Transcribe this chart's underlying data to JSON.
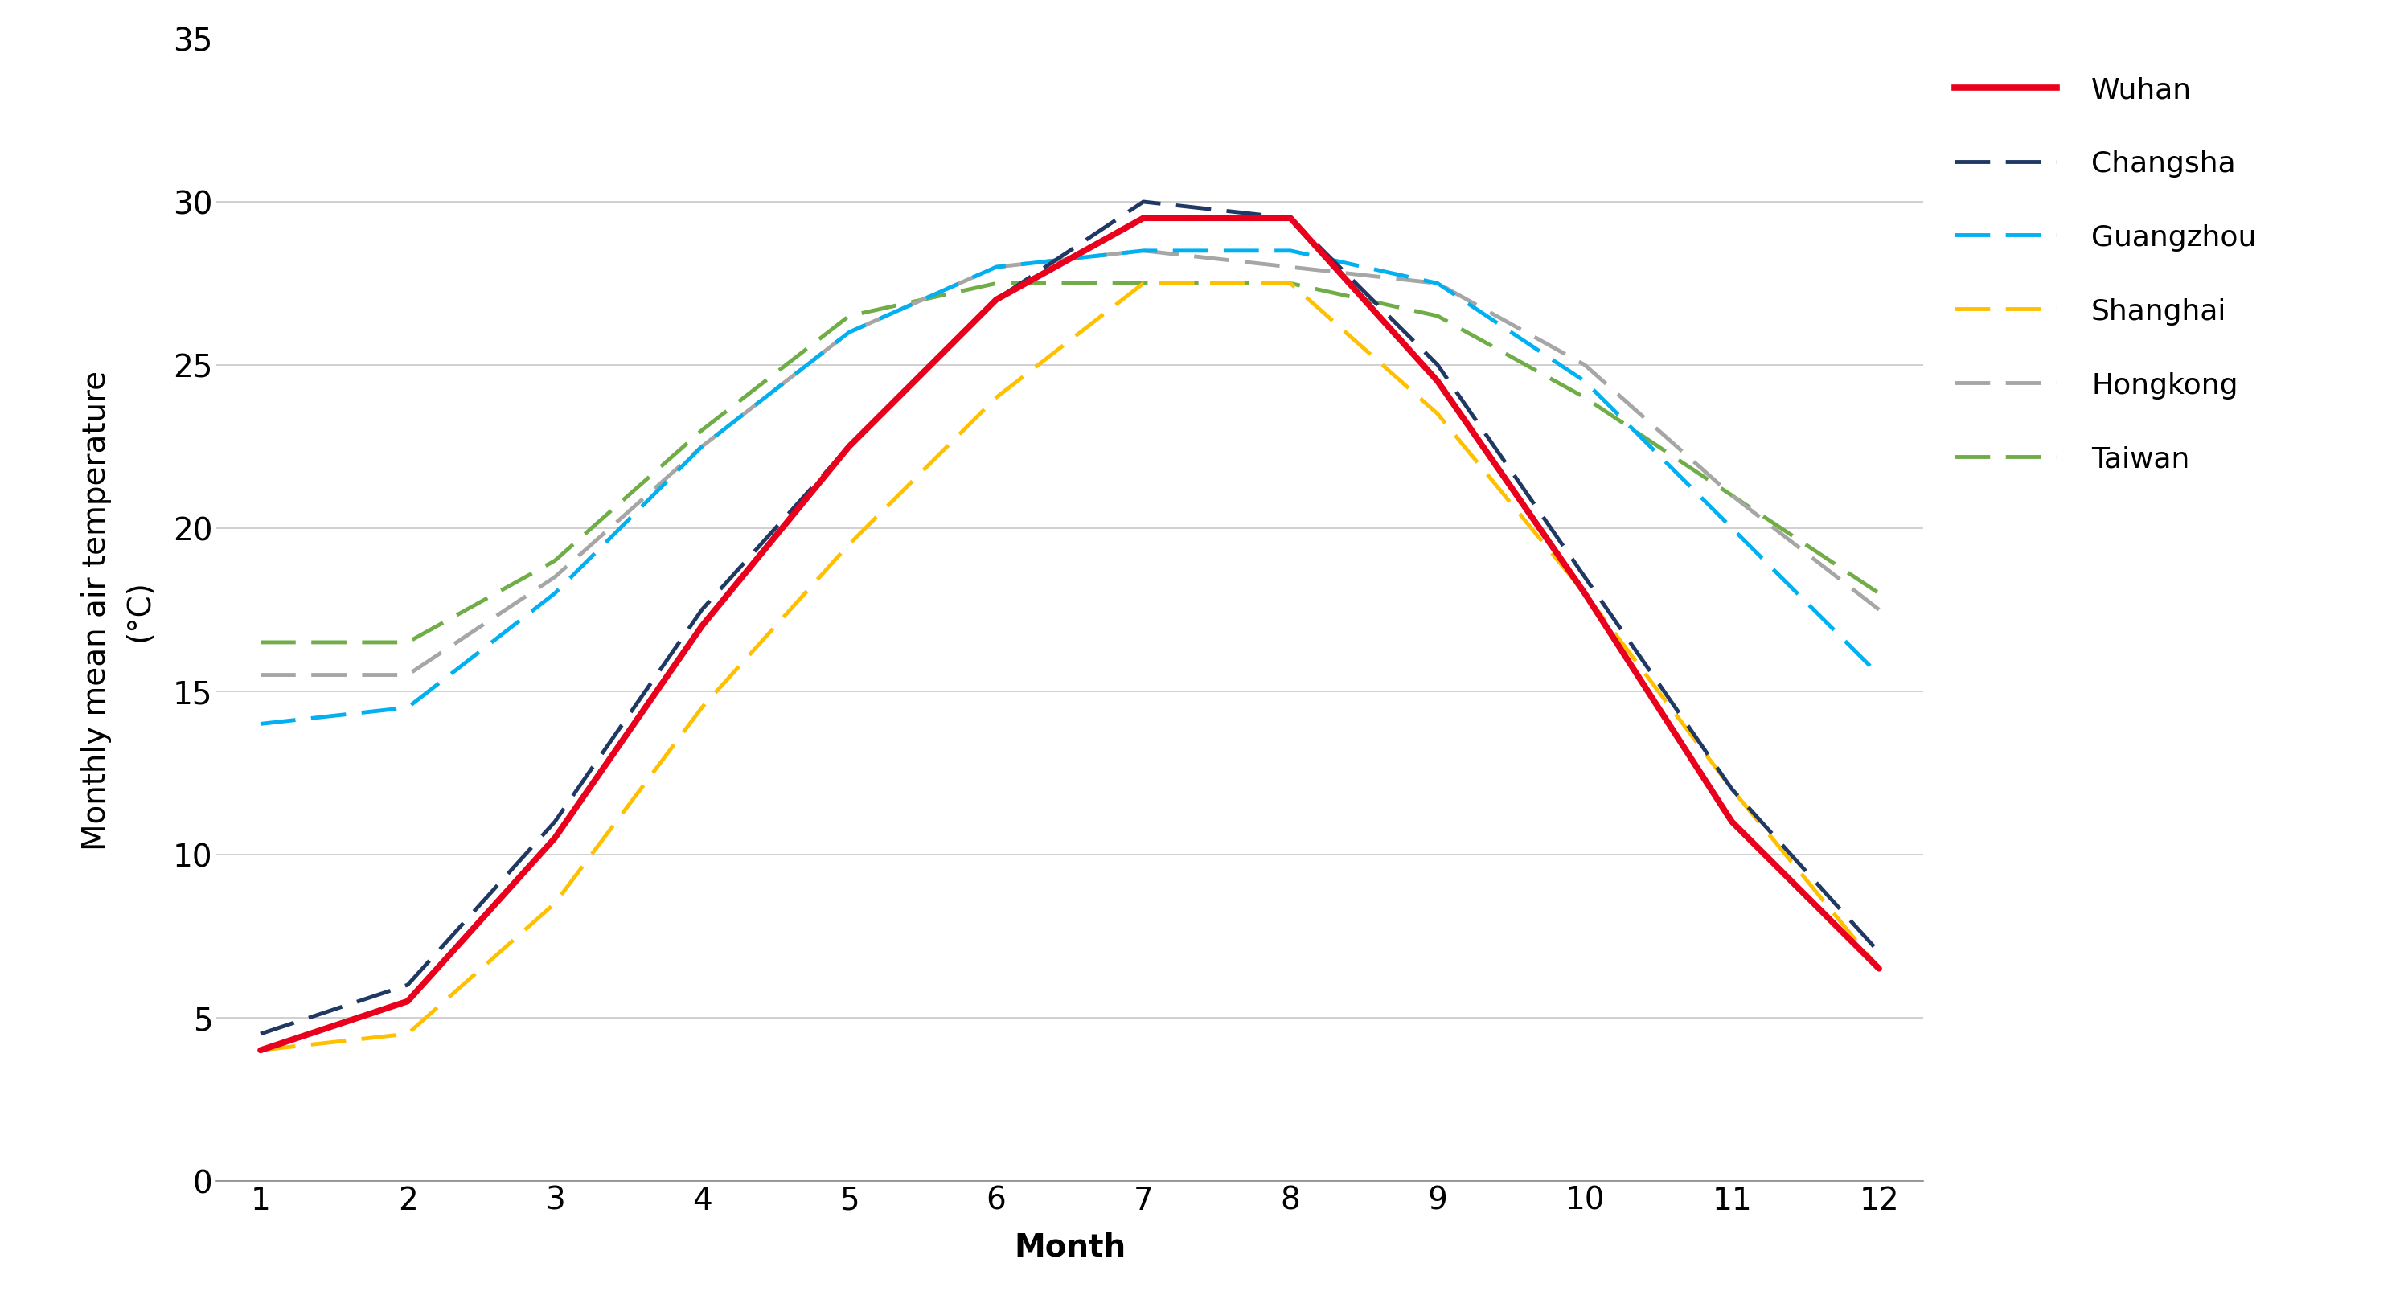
{
  "months": [
    1,
    2,
    3,
    4,
    5,
    6,
    7,
    8,
    9,
    10,
    11,
    12
  ],
  "series": {
    "Wuhan": {
      "values": [
        4.0,
        5.5,
        10.5,
        17.0,
        22.5,
        27.0,
        29.5,
        29.5,
        24.5,
        18.0,
        11.0,
        6.5
      ],
      "color": "#e8001c",
      "linestyle": "solid",
      "linewidth": 5.5,
      "zorder": 10
    },
    "Changsha": {
      "values": [
        4.5,
        6.0,
        11.0,
        17.5,
        22.5,
        27.0,
        30.0,
        29.5,
        25.0,
        18.5,
        12.0,
        7.0
      ],
      "color": "#1f3864",
      "linestyle": "dashed",
      "linewidth": 3.5,
      "zorder": 9
    },
    "Guangzhou": {
      "values": [
        14.0,
        14.5,
        18.0,
        22.5,
        26.0,
        28.0,
        28.5,
        28.5,
        27.5,
        24.5,
        20.0,
        15.5
      ],
      "color": "#00b0f0",
      "linestyle": "dashed",
      "linewidth": 3.5,
      "zorder": 8
    },
    "Shanghai": {
      "values": [
        4.0,
        4.5,
        8.5,
        14.5,
        19.5,
        24.0,
        27.5,
        27.5,
        23.5,
        18.0,
        12.0,
        6.5
      ],
      "color": "#ffc000",
      "linestyle": "dashed",
      "linewidth": 3.5,
      "zorder": 7
    },
    "Hongkong": {
      "values": [
        15.5,
        15.5,
        18.5,
        22.5,
        26.0,
        28.0,
        28.5,
        28.0,
        27.5,
        25.0,
        21.0,
        17.5
      ],
      "color": "#a6a6a6",
      "linestyle": "dashed",
      "linewidth": 3.5,
      "zorder": 6
    },
    "Taiwan": {
      "values": [
        16.5,
        16.5,
        19.0,
        23.0,
        26.5,
        27.5,
        27.5,
        27.5,
        26.5,
        24.0,
        21.0,
        18.0
      ],
      "color": "#70ad47",
      "linestyle": "dashed",
      "linewidth": 3.5,
      "zorder": 5
    }
  },
  "xlabel": "Month",
  "ylabel_line1": "Monthly mean air temperature",
  "ylabel_line2": "(°C)",
  "ylim": [
    0,
    35
  ],
  "yticks": [
    0,
    5,
    10,
    15,
    20,
    25,
    30,
    35
  ],
  "xlim": [
    0.7,
    12.3
  ],
  "xticks": [
    1,
    2,
    3,
    4,
    5,
    6,
    7,
    8,
    9,
    10,
    11,
    12
  ],
  "label_fontsize": 28,
  "tick_fontsize": 28,
  "legend_fontsize": 26,
  "background_color": "#ffffff",
  "grid_color": "#c8c8c8",
  "legend_entries": [
    {
      "name": "Wuhan",
      "color": "#e8001c",
      "linestyle": "solid"
    },
    {
      "name": "Changsha",
      "color": "#1f3864",
      "linestyle": "dashed"
    },
    {
      "name": "Guangzhou",
      "color": "#00b0f0",
      "linestyle": "dashed"
    },
    {
      "name": "Shanghai",
      "color": "#ffc000",
      "linestyle": "dashed"
    },
    {
      "name": "Hongkong",
      "color": "#a6a6a6",
      "linestyle": "dashed"
    },
    {
      "name": "Taiwan",
      "color": "#70ad47",
      "linestyle": "dashed"
    }
  ]
}
